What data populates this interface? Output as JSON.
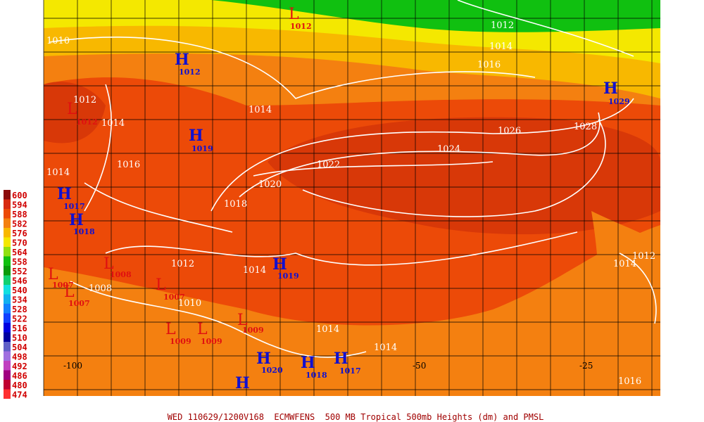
{
  "caption": "WED 110629/1200V168  ECMWFENS  500 MB Tropical 500mb Heights (dm) and PMSL",
  "legend": {
    "levels": [
      {
        "value": 600,
        "color": "#8b0a0a"
      },
      {
        "value": 594,
        "color": "#d82a10"
      },
      {
        "value": 588,
        "color": "#ec4a08"
      },
      {
        "value": 582,
        "color": "#f48010"
      },
      {
        "value": 576,
        "color": "#f8b800"
      },
      {
        "value": 570,
        "color": "#f4e800"
      },
      {
        "value": 564,
        "color": "#90e010"
      },
      {
        "value": 558,
        "color": "#10c010"
      },
      {
        "value": 552,
        "color": "#0a9a0a"
      },
      {
        "value": 546,
        "color": "#10d070"
      },
      {
        "value": 540,
        "color": "#10e0e0"
      },
      {
        "value": 534,
        "color": "#10b0f0"
      },
      {
        "value": 528,
        "color": "#1080ff"
      },
      {
        "value": 522,
        "color": "#1040ff"
      },
      {
        "value": 516,
        "color": "#0000e0"
      },
      {
        "value": 510,
        "color": "#0000a0"
      },
      {
        "value": 504,
        "color": "#6060c8"
      },
      {
        "value": 498,
        "color": "#a070e0"
      },
      {
        "value": 492,
        "color": "#c040c0"
      },
      {
        "value": 486,
        "color": "#a00080"
      },
      {
        "value": 480,
        "color": "#c00030"
      },
      {
        "value": 474,
        "color": "#ff3030"
      }
    ]
  },
  "longitudes": [
    -100,
    -50,
    -25
  ],
  "centers": [
    {
      "letter": "L",
      "value": 1012
    },
    {
      "letter": "H",
      "value": 1012
    },
    {
      "letter": "H",
      "value": 1029
    },
    {
      "letter": "L",
      "value": 1012
    },
    {
      "letter": "H",
      "value": 1019
    },
    {
      "letter": "H",
      "value": 1017
    },
    {
      "letter": "H",
      "value": 1018
    },
    {
      "letter": "L",
      "value": 1007
    },
    {
      "letter": "L",
      "value": 1007
    },
    {
      "letter": "L",
      "value": 1008
    },
    {
      "letter": "L",
      "value": 1007
    },
    {
      "letter": "H",
      "value": 1019
    },
    {
      "letter": "L",
      "value": 1009
    },
    {
      "letter": "L",
      "value": 1009
    },
    {
      "letter": "L",
      "value": 1009
    },
    {
      "letter": "H",
      "value": 1020
    },
    {
      "letter": "H",
      "value": 1018
    },
    {
      "letter": "H",
      "value": 1017
    },
    {
      "letter": "H"
    }
  ],
  "isobar_labels": [
    1010,
    1012,
    1014,
    1014,
    1016,
    1014,
    1018,
    1020,
    1022,
    1024,
    1026,
    1028,
    1012,
    1014,
    1016,
    1012,
    1014,
    1008,
    1010,
    1014,
    1014,
    1016,
    1014,
    1012
  ]
}
